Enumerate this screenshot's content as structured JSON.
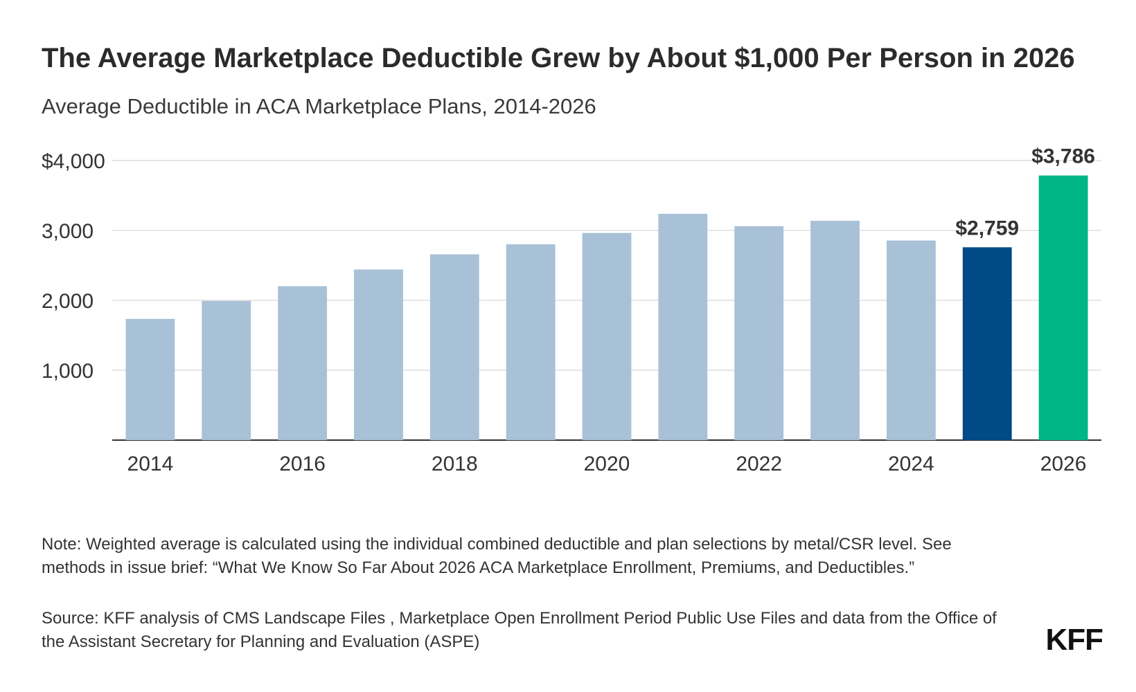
{
  "title": "The Average Marketplace Deductible Grew by About $1,000 Per Person in 2026",
  "subtitle": "Average Deductible in ACA Marketplace Plans, 2014-2026",
  "chart_data": {
    "type": "bar",
    "categories": [
      "2014",
      "2015",
      "2016",
      "2017",
      "2018",
      "2019",
      "2020",
      "2021",
      "2022",
      "2023",
      "2024",
      "2025",
      "2026"
    ],
    "values": [
      1734,
      1991,
      2202,
      2441,
      2658,
      2802,
      2964,
      3238,
      3061,
      3138,
      2856,
      2759,
      3786
    ],
    "x_tick_labels": [
      "2014",
      "",
      "2016",
      "",
      "2018",
      "",
      "2020",
      "",
      "2022",
      "",
      "2024",
      "",
      "2026"
    ],
    "y_ticks": [
      {
        "value": 1000,
        "label": "1,000"
      },
      {
        "value": 2000,
        "label": "2,000"
      },
      {
        "value": 3000,
        "label": "3,000"
      },
      {
        "value": 4000,
        "label": "$4,000"
      }
    ],
    "ylim": [
      0,
      4000
    ],
    "grid": true,
    "colors": {
      "default": "#a8c1d7",
      "highlight_2025": "#004a87",
      "highlight_2026": "#00b586"
    },
    "bar_colors": [
      "#a8c1d7",
      "#a8c1d7",
      "#a8c1d7",
      "#a8c1d7",
      "#a8c1d7",
      "#a8c1d7",
      "#a8c1d7",
      "#a8c1d7",
      "#a8c1d7",
      "#a8c1d7",
      "#a8c1d7",
      "#004a87",
      "#00b586"
    ],
    "data_labels": [
      {
        "index": 11,
        "text": "$2,759"
      },
      {
        "index": 12,
        "text": "$3,786"
      }
    ]
  },
  "note": "Note: Weighted average is calculated using the individual combined deductible and plan selections by metal/CSR level. See methods in issue brief: “What We Know So Far About 2026 ACA Marketplace Enrollment, Premiums, and Deductibles.”",
  "source": "Source: KFF analysis of CMS Landscape Files , Marketplace Open Enrollment Period Public Use Files and data from the Office of the Assistant Secretary for Planning and Evaluation (ASPE)",
  "logo_text": "KFF"
}
